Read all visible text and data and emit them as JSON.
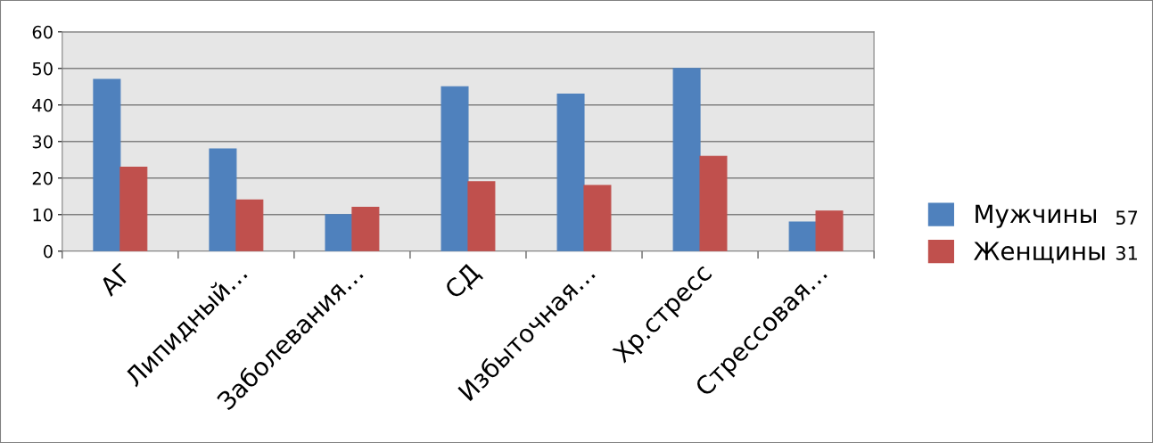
{
  "chart_data": {
    "type": "bar",
    "categories": [
      "АГ",
      "Липидный…",
      "Заболевания…",
      "СД",
      "Избыточная…",
      "Хр.стресс",
      "Стрессовая…"
    ],
    "series": [
      {
        "name": "Мужчины",
        "color": "#4f81bd",
        "values": [
          47,
          28,
          10,
          45,
          43,
          50,
          8
        ]
      },
      {
        "name": "Женщины",
        "color": "#c0504d",
        "values": [
          23,
          14,
          12,
          19,
          18,
          26,
          11
        ]
      }
    ],
    "ylim": [
      0,
      60
    ],
    "yticks": [
      0,
      10,
      20,
      30,
      40,
      50,
      60
    ],
    "grid": "y",
    "legend": "right",
    "annotations": [
      "57",
      "31"
    ]
  }
}
